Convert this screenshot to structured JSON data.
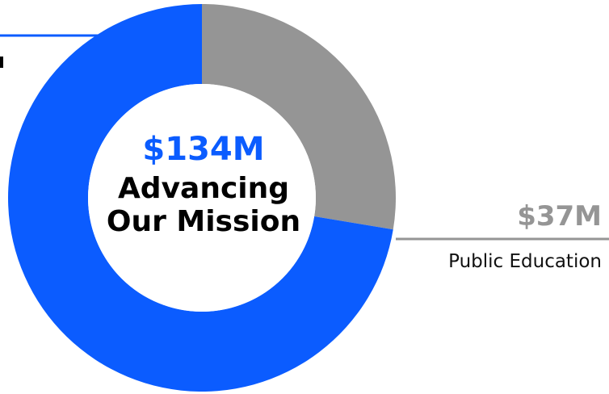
{
  "colors": {
    "blue": "#0b5cff",
    "gray": "#959595",
    "text": "#000000"
  },
  "chart_data": {
    "type": "pie",
    "variant": "donut",
    "center": {
      "amount": "$134M",
      "line1": "Advancing",
      "line2": "Our Mission"
    },
    "total": 134,
    "unit": "$M",
    "slices": [
      {
        "value": 97,
        "color": "#0b5cff",
        "value_label": "",
        "label": "",
        "label_side": "left"
      },
      {
        "value": 37,
        "color": "#959595",
        "value_label": "$37M",
        "label": "Public Education",
        "label_side": "right"
      }
    ]
  }
}
